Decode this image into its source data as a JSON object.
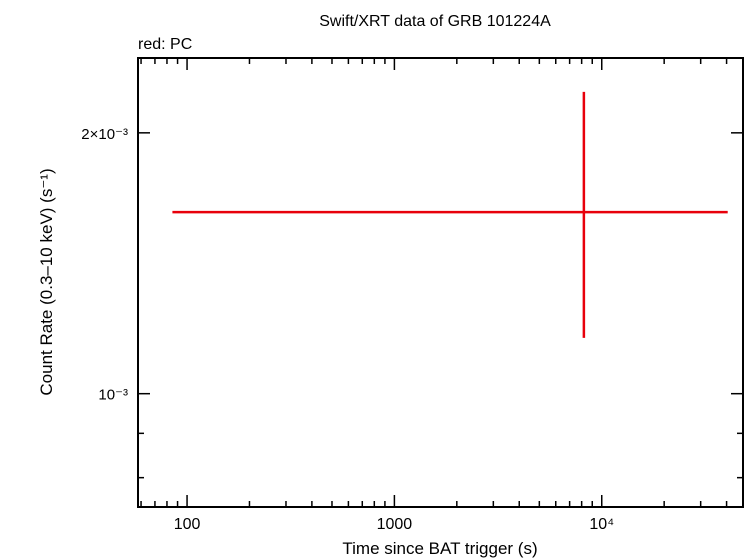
{
  "chart_data": {
    "type": "scatter",
    "title": "Swift/XRT data of GRB 101224A",
    "subtitle": "red: PC",
    "xlabel": "Time since BAT trigger (s)",
    "ylabel": "Count Rate (0.3–10 keV) (s⁻¹)",
    "x_scale": "log",
    "y_scale": "log",
    "xlim": [
      58,
      48000
    ],
    "ylim": [
      0.00074,
      0.00244
    ],
    "x_ticks": [
      {
        "value": 100,
        "label": "100"
      },
      {
        "value": 1000,
        "label": "1000"
      },
      {
        "value": 10000,
        "label": "10⁴"
      }
    ],
    "y_ticks": [
      {
        "value": 0.001,
        "label": "10⁻³"
      },
      {
        "value": 0.002,
        "label": "2×10⁻³"
      }
    ],
    "grid": false,
    "series": [
      {
        "name": "PC",
        "color": "#e8000b",
        "points": [
          {
            "x": 8200,
            "y": 0.00162,
            "x_lo": 85,
            "x_hi": 40500,
            "y_lo": 0.00116,
            "y_hi": 0.00223
          }
        ]
      }
    ]
  }
}
